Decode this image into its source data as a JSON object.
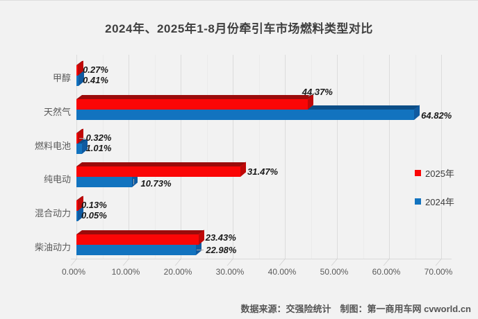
{
  "title": "2024年、2025年1-8月份牵引车市场燃料类型对比",
  "chart_data": {
    "type": "bar",
    "orientation": "horizontal",
    "style": "3d",
    "title": "2024年、2025年1-8月份牵引车市场燃料类型对比",
    "categories": [
      "甲醇",
      "天然气",
      "燃料电池",
      "纯电动",
      "混合动力",
      "柴油动力"
    ],
    "series": [
      {
        "name": "2025年",
        "color": "#fb0606",
        "color_top": "#9b0b0b",
        "color_side": "#c00808",
        "values": [
          0.27,
          44.37,
          0.32,
          31.47,
          0.13,
          23.43
        ],
        "labels": [
          "0.27%",
          "44.37%",
          "0.32%",
          "31.47%",
          "0.13%",
          "23.43%"
        ]
      },
      {
        "name": "2024年",
        "color": "#1273bf",
        "color_top": "#0c4e87",
        "color_side": "#0f5aa0",
        "values": [
          0.41,
          64.82,
          1.01,
          10.73,
          0.05,
          22.98
        ],
        "labels": [
          "0.41%",
          "64.82%",
          "1.01%",
          "10.73%",
          "0.05%",
          "22.98%"
        ]
      }
    ],
    "x_axis": {
      "min": 0,
      "max": 70,
      "tick_step": 10,
      "tick_labels": [
        "0.00%",
        "10.00%",
        "20.00%",
        "30.00%",
        "40.00%",
        "50.00%",
        "60.00%",
        "70.00%"
      ]
    },
    "legend": [
      {
        "label": "2025年",
        "color": "#fb0606"
      },
      {
        "label": "2024年",
        "color": "#1273bf"
      }
    ],
    "grid": "vertical-major-and-minor",
    "legend_position": "right"
  },
  "footer": {
    "text": "数据来源：交强险统计　制图：第一商用车网 cvworld.cn"
  }
}
